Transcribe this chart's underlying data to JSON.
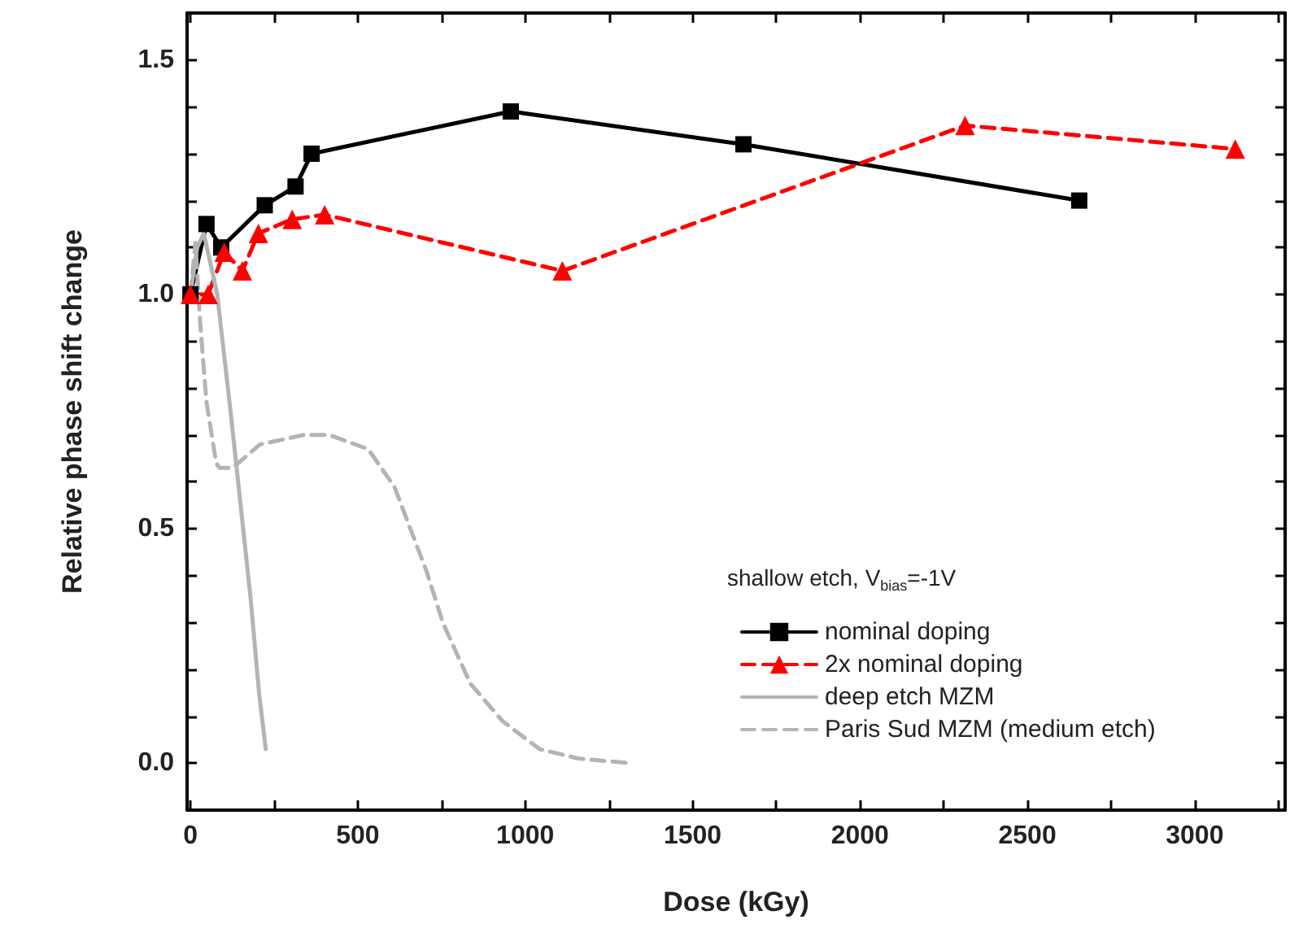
{
  "chart_data": {
    "type": "line",
    "xlabel": "Dose (kGy)",
    "ylabel": "Relative phase shift change",
    "legend_title": "shallow etch, V$_{bias}$=-1V",
    "legend": "bottom right",
    "grid": false,
    "xlim": [
      -10,
      3270
    ],
    "ylim": [
      -0.1,
      1.6
    ],
    "xticks": [
      0,
      {
        "value": 250,
        "label": null
      },
      500,
      {
        "value": 750,
        "label": null
      },
      1000,
      {
        "value": 1250,
        "label": null
      },
      1500,
      {
        "value": 1750,
        "label": null
      },
      2000,
      {
        "value": 2250,
        "label": null
      },
      2500,
      {
        "value": 2750,
        "label": null
      },
      3000,
      {
        "value": 3250,
        "label": null
      }
    ],
    "yticks": [
      {
        "value": 0,
        "label": "0.0"
      },
      {
        "value": 0.1,
        "label": null
      },
      {
        "value": 0.2,
        "label": null
      },
      {
        "value": 0.3,
        "label": null
      },
      {
        "value": 0.4,
        "label": null
      },
      {
        "value": 0.5,
        "label": "0.5"
      },
      {
        "value": 0.6,
        "label": null
      },
      {
        "value": 0.7,
        "label": null
      },
      {
        "value": 0.8,
        "label": null
      },
      {
        "value": 0.9,
        "label": null
      },
      {
        "value": 1,
        "label": "1.0"
      },
      {
        "value": 1.1,
        "label": null
      },
      {
        "value": 1.2,
        "label": null
      },
      {
        "value": 1.3,
        "label": null
      },
      {
        "value": 1.4,
        "label": null
      },
      {
        "value": 1.5,
        "label": "1.5"
      }
    ],
    "series": [
      {
        "name": "nominal doping",
        "color": "#000000",
        "marker": "square",
        "line_style": "solid",
        "x": [
          0,
          48,
          92,
          222,
          314,
          362,
          957,
          1652,
          2655
        ],
        "values": [
          1.0,
          1.15,
          1.1,
          1.19,
          1.23,
          1.3,
          1.39,
          1.32,
          1.2
        ]
      },
      {
        "name": "2x nominal doping",
        "color": "#ff0000",
        "marker": "triangle",
        "line_style": "dashed",
        "x": [
          0,
          53,
          101,
          155,
          203,
          304,
          401,
          1111,
          2314,
          3121
        ],
        "values": [
          1.0,
          1.0,
          1.09,
          1.05,
          1.13,
          1.16,
          1.17,
          1.05,
          1.36,
          1.31
        ]
      },
      {
        "name": "deep etch MZM",
        "color": "#b4b4b4",
        "marker": "none",
        "line_style": "solid",
        "x": [
          0,
          20,
          40,
          80,
          120,
          150,
          180,
          205,
          225
        ],
        "values": [
          1.0,
          1.1,
          1.13,
          1.0,
          0.75,
          0.55,
          0.35,
          0.15,
          0.03
        ]
      },
      {
        "name": "Paris Sud MZM (medium etch)",
        "color": "#b4b4b4",
        "marker": "none",
        "line_style": "dashed",
        "x": [
          0,
          15,
          29,
          48,
          77,
          87,
          126,
          208,
          338,
          415,
          531,
          609,
          657,
          705,
          754,
          836,
          932,
          1043,
          1159,
          1319
        ],
        "values": [
          1.0,
          1.11,
          0.94,
          0.77,
          0.64,
          0.63,
          0.63,
          0.68,
          0.7,
          0.7,
          0.67,
          0.59,
          0.5,
          0.41,
          0.3,
          0.17,
          0.09,
          0.03,
          0.01,
          0.0
        ]
      }
    ]
  }
}
